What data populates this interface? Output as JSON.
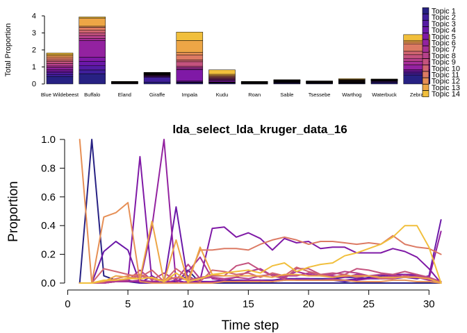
{
  "chart_data": [
    {
      "type": "bar",
      "stacked": true,
      "title": "",
      "xlabel": "",
      "ylabel": "Total Proportion",
      "ylim": [
        0,
        4.2
      ],
      "yticks": [
        0,
        1,
        2,
        3,
        4
      ],
      "categories": [
        "Blue Wildebeest",
        "Buffalo",
        "Eland",
        "Giraffe",
        "Impala",
        "Kudu",
        "Roan",
        "Sable",
        "Tsessebe",
        "Warthog",
        "Waterbuck",
        "Zebra"
      ],
      "series": [
        {
          "name": "Topic 1",
          "values": [
            0.44,
            0.6,
            0.02,
            0.1,
            0.05,
            0.05,
            0.01,
            0.04,
            0.03,
            0.03,
            0.07,
            0.5
          ]
        },
        {
          "name": "Topic 2",
          "values": [
            0.12,
            0.22,
            0.01,
            0.28,
            0.04,
            0.03,
            0.01,
            0.03,
            0.02,
            0.02,
            0.04,
            0.1
          ]
        },
        {
          "name": "Topic 3",
          "values": [
            0.1,
            0.25,
            0.01,
            0.04,
            0.03,
            0.02,
            0.01,
            0.02,
            0.02,
            0.02,
            0.03,
            0.08
          ]
        },
        {
          "name": "Topic 4",
          "values": [
            0.08,
            0.26,
            0.01,
            0.04,
            0.05,
            0.02,
            0.01,
            0.02,
            0.01,
            0.01,
            0.03,
            0.08
          ]
        },
        {
          "name": "Topic 5",
          "values": [
            0.1,
            0.24,
            0.01,
            0.03,
            0.66,
            0.08,
            0.01,
            0.02,
            0.01,
            0.02,
            0.02,
            0.08
          ]
        },
        {
          "name": "Topic 6",
          "values": [
            0.12,
            0.98,
            0.01,
            0.03,
            0.06,
            0.04,
            0.01,
            0.02,
            0.01,
            0.02,
            0.02,
            0.28
          ]
        },
        {
          "name": "Topic 7",
          "values": [
            0.1,
            0.12,
            0.01,
            0.02,
            0.08,
            0.04,
            0.01,
            0.02,
            0.01,
            0.02,
            0.01,
            0.2
          ]
        },
        {
          "name": "Topic 8",
          "values": [
            0.14,
            0.18,
            0.01,
            0.02,
            0.06,
            0.04,
            0.01,
            0.02,
            0.01,
            0.02,
            0.01,
            0.18
          ]
        },
        {
          "name": "Topic 9",
          "values": [
            0.12,
            0.16,
            0.01,
            0.02,
            0.28,
            0.04,
            0.01,
            0.01,
            0.01,
            0.02,
            0.01,
            0.22
          ]
        },
        {
          "name": "Topic 10",
          "values": [
            0.1,
            0.14,
            0.01,
            0.02,
            0.1,
            0.04,
            0.01,
            0.01,
            0.01,
            0.02,
            0.01,
            0.2
          ]
        },
        {
          "name": "Topic 11",
          "values": [
            0.12,
            0.18,
            0.01,
            0.02,
            0.3,
            0.05,
            0.01,
            0.01,
            0.01,
            0.02,
            0.01,
            0.44
          ]
        },
        {
          "name": "Topic 12",
          "values": [
            0.1,
            0.06,
            0.01,
            0.02,
            0.14,
            0.04,
            0.01,
            0.01,
            0.01,
            0.02,
            0.01,
            0.1
          ]
        },
        {
          "name": "Topic 13",
          "values": [
            0.08,
            0.48,
            0.01,
            0.02,
            0.7,
            0.08,
            0.01,
            0.01,
            0.01,
            0.03,
            0.01,
            0.1
          ]
        },
        {
          "name": "Topic 14",
          "values": [
            0.1,
            0.07,
            0.01,
            0.02,
            0.5,
            0.26,
            0.02,
            0.01,
            0.01,
            0.04,
            0.01,
            0.34
          ]
        }
      ],
      "legend": "right"
    },
    {
      "type": "line",
      "title": "lda_select_lda_kruger_data_16",
      "xlabel": "Time step",
      "ylabel": "Proportion",
      "xlim": [
        0,
        32
      ],
      "ylim": [
        0,
        1
      ],
      "xticks": [
        0,
        5,
        10,
        15,
        20,
        25,
        30
      ],
      "yticks": [
        0.0,
        0.2,
        0.4,
        0.6,
        0.8,
        1.0
      ],
      "grid": false,
      "x": [
        1,
        2,
        3,
        4,
        5,
        6,
        7,
        8,
        9,
        10,
        11,
        12,
        13,
        14,
        15,
        16,
        17,
        18,
        19,
        20,
        21,
        22,
        23,
        24,
        25,
        26,
        27,
        28,
        29,
        30,
        31
      ],
      "series": [
        {
          "name": "Topic 1",
          "values": [
            0.0,
            1.0,
            0.05,
            0.02,
            0.01,
            0.0,
            0.0,
            0.0,
            0.0,
            0.09,
            0.0,
            0.0,
            0.0,
            0.0,
            0.0,
            0.0,
            0.0,
            0.0,
            0.0,
            0.0,
            0.0,
            0.0,
            0.0,
            0.0,
            0.0,
            0.0,
            0.0,
            0.0,
            0.0,
            0.0,
            0.0
          ]
        },
        {
          "name": "Topic 2",
          "values": [
            0.0,
            0.0,
            0.01,
            0.01,
            0.01,
            0.01,
            0.01,
            0.0,
            0.01,
            0.05,
            0.0,
            0.01,
            0.02,
            0.02,
            0.02,
            0.02,
            0.02,
            0.03,
            0.03,
            0.03,
            0.03,
            0.03,
            0.04,
            0.04,
            0.03,
            0.04,
            0.05,
            0.04,
            0.04,
            0.04,
            0.0
          ]
        },
        {
          "name": "Topic 3",
          "values": [
            0.0,
            0.0,
            0.0,
            0.01,
            0.02,
            0.0,
            0.0,
            0.0,
            0.0,
            0.0,
            0.0,
            0.01,
            0.01,
            0.01,
            0.01,
            0.02,
            0.01,
            0.02,
            0.03,
            0.02,
            0.02,
            0.02,
            0.01,
            0.02,
            0.04,
            0.05,
            0.06,
            0.06,
            0.05,
            0.04,
            0.0
          ]
        },
        {
          "name": "Topic 4",
          "values": [
            0.0,
            0.0,
            0.22,
            0.29,
            0.23,
            0.0,
            0.05,
            0.0,
            0.53,
            0.0,
            0.01,
            0.01,
            0.01,
            0.02,
            0.02,
            0.01,
            0.02,
            0.02,
            0.03,
            0.03,
            0.02,
            0.02,
            0.02,
            0.03,
            0.03,
            0.03,
            0.03,
            0.04,
            0.03,
            0.05,
            0.44
          ]
        },
        {
          "name": "Topic 5",
          "values": [
            0.0,
            0.0,
            0.01,
            0.01,
            0.02,
            0.88,
            0.01,
            0.0,
            0.02,
            0.0,
            0.02,
            0.38,
            0.39,
            0.32,
            0.35,
            0.31,
            0.23,
            0.31,
            0.28,
            0.29,
            0.24,
            0.25,
            0.25,
            0.21,
            0.21,
            0.21,
            0.24,
            0.22,
            0.18,
            0.1,
            0.0
          ]
        },
        {
          "name": "Topic 6",
          "values": [
            0.0,
            0.0,
            0.0,
            0.01,
            0.01,
            0.01,
            0.39,
            1.0,
            0.0,
            0.01,
            0.0,
            0.01,
            0.01,
            0.01,
            0.02,
            0.02,
            0.01,
            0.03,
            0.02,
            0.02,
            0.02,
            0.03,
            0.02,
            0.02,
            0.03,
            0.04,
            0.05,
            0.06,
            0.06,
            0.03,
            0.36
          ]
        },
        {
          "name": "Topic 7",
          "values": [
            0.0,
            0.0,
            0.0,
            0.01,
            0.01,
            0.02,
            0.01,
            0.02,
            0.0,
            0.08,
            0.18,
            0.03,
            0.02,
            0.04,
            0.08,
            0.1,
            0.05,
            0.04,
            0.08,
            0.06,
            0.05,
            0.05,
            0.04,
            0.06,
            0.05,
            0.04,
            0.05,
            0.04,
            0.04,
            0.02,
            0.01
          ]
        },
        {
          "name": "Topic 8",
          "values": [
            0.0,
            0.0,
            0.0,
            0.01,
            0.02,
            0.09,
            0.02,
            0.07,
            0.02,
            0.13,
            0.03,
            0.04,
            0.03,
            0.04,
            0.03,
            0.05,
            0.06,
            0.05,
            0.05,
            0.07,
            0.06,
            0.06,
            0.08,
            0.07,
            0.05,
            0.06,
            0.06,
            0.04,
            0.05,
            0.03,
            0.01
          ]
        },
        {
          "name": "Topic 9",
          "values": [
            0.0,
            0.0,
            0.01,
            0.02,
            0.03,
            0.05,
            0.03,
            0.02,
            0.04,
            0.02,
            0.04,
            0.05,
            0.05,
            0.12,
            0.14,
            0.09,
            0.05,
            0.03,
            0.1,
            0.1,
            0.06,
            0.07,
            0.06,
            0.1,
            0.09,
            0.07,
            0.06,
            0.08,
            0.06,
            0.04,
            0.01
          ]
        },
        {
          "name": "Topic 10",
          "values": [
            0.0,
            0.0,
            0.1,
            0.08,
            0.06,
            0.04,
            0.09,
            0.01,
            0.1,
            0.04,
            0.01,
            0.09,
            0.08,
            0.06,
            0.07,
            0.04,
            0.07,
            0.05,
            0.11,
            0.08,
            0.06,
            0.04,
            0.06,
            0.04,
            0.05,
            0.03,
            0.03,
            0.05,
            0.04,
            0.03,
            0.0
          ]
        },
        {
          "name": "Topic 11",
          "values": [
            0.0,
            0.0,
            0.01,
            0.03,
            0.05,
            0.06,
            0.03,
            0.01,
            0.04,
            0.03,
            0.23,
            0.23,
            0.24,
            0.24,
            0.23,
            0.27,
            0.3,
            0.32,
            0.3,
            0.27,
            0.29,
            0.29,
            0.28,
            0.27,
            0.28,
            0.27,
            0.33,
            0.27,
            0.25,
            0.24,
            0.2
          ]
        },
        {
          "name": "Topic 12",
          "values": [
            1.0,
            0.0,
            0.46,
            0.49,
            0.56,
            0.01,
            0.0,
            0.0,
            0.0,
            0.0,
            0.0,
            0.0,
            0.01,
            0.01,
            0.01,
            0.01,
            0.01,
            0.02,
            0.02,
            0.02,
            0.02,
            0.02,
            0.02,
            0.01,
            0.01,
            0.01,
            0.02,
            0.02,
            0.01,
            0.01,
            0.0
          ]
        },
        {
          "name": "Topic 13",
          "values": [
            0.0,
            0.0,
            0.01,
            0.05,
            0.04,
            0.03,
            0.43,
            0.01,
            0.3,
            0.0,
            0.25,
            0.06,
            0.05,
            0.05,
            0.05,
            0.05,
            0.04,
            0.06,
            0.06,
            0.05,
            0.05,
            0.04,
            0.05,
            0.05,
            0.05,
            0.04,
            0.04,
            0.04,
            0.04,
            0.03,
            0.0
          ]
        },
        {
          "name": "Topic 14",
          "values": [
            0.0,
            0.0,
            0.02,
            0.02,
            0.03,
            0.03,
            0.04,
            0.01,
            0.07,
            0.01,
            0.03,
            0.06,
            0.07,
            0.08,
            0.09,
            0.07,
            0.12,
            0.14,
            0.08,
            0.11,
            0.13,
            0.14,
            0.19,
            0.21,
            0.24,
            0.27,
            0.32,
            0.4,
            0.4,
            0.25,
            0.0
          ]
        }
      ]
    }
  ],
  "colors": [
    "#272183",
    "#3f1f9a",
    "#551ba3",
    "#6b18a8",
    "#7f19a6",
    "#9322a0",
    "#a52f96",
    "#b6408b",
    "#c4527e",
    "#d16571",
    "#dc7a64",
    "#e68f55",
    "#eda646",
    "#f1bf3c"
  ]
}
